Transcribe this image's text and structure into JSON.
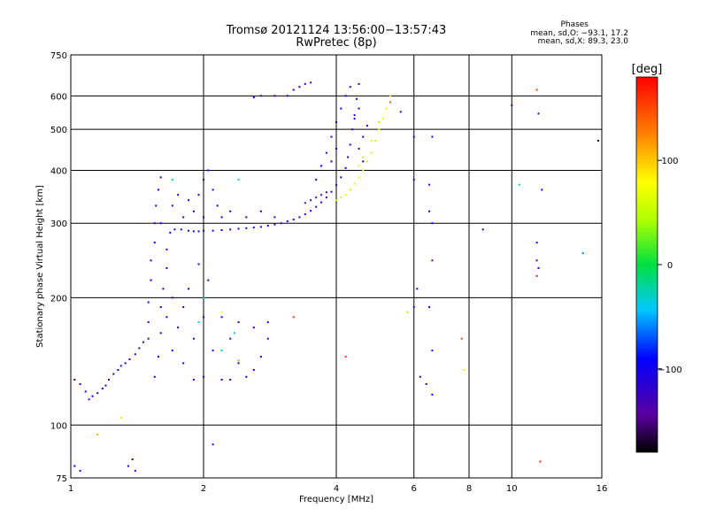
{
  "title": {
    "line1": "Tromsø 20121124 13:56:00−13:57:43",
    "line2": "RwPretec (8p)"
  },
  "stats": {
    "heading": "Phases",
    "line_o": "mean, sd,O: −93.1, 17.2",
    "line_x": "mean, sd,X: 89.3, 23.0"
  },
  "colorbar": {
    "unit": "[deg]",
    "min": -180,
    "max": 180,
    "ticks": [
      {
        "value": 100,
        "label": "100"
      },
      {
        "value": 0,
        "label": "0"
      },
      {
        "value": -100,
        "label": "−100"
      }
    ]
  },
  "chart_data": {
    "type": "scatter",
    "xlabel": "Frequency [MHz]",
    "ylabel": "Stationary phase Virtual Height [km]",
    "xscale": "log",
    "yscale": "log",
    "xlim": [
      1,
      16
    ],
    "ylim": [
      75,
      750
    ],
    "xticks": [
      {
        "value": 1,
        "label": "1"
      },
      {
        "value": 2,
        "label": "2"
      },
      {
        "value": 4,
        "label": "4"
      },
      {
        "value": 6,
        "label": "6"
      },
      {
        "value": 8,
        "label": "8"
      },
      {
        "value": 10,
        "label": "10"
      },
      {
        "value": 16,
        "label": "16"
      }
    ],
    "yticks": [
      {
        "value": 75,
        "label": "75"
      },
      {
        "value": 100,
        "label": "100"
      },
      {
        "value": 200,
        "label": "200"
      },
      {
        "value": 300,
        "label": "300"
      },
      {
        "value": 400,
        "label": "400"
      },
      {
        "value": 500,
        "label": "500"
      },
      {
        "value": 600,
        "label": "600"
      },
      {
        "value": 750,
        "label": "750"
      }
    ],
    "grid": true,
    "points": [
      [
        1.02,
        128,
        -110
      ],
      [
        1.05,
        125,
        -105
      ],
      [
        1.08,
        120,
        -100
      ],
      [
        1.1,
        115,
        -110
      ],
      [
        1.12,
        117,
        -95
      ],
      [
        1.15,
        119,
        -105
      ],
      [
        1.18,
        122,
        -110
      ],
      [
        1.2,
        124,
        -100
      ],
      [
        1.22,
        128,
        -105
      ],
      [
        1.25,
        132,
        -108
      ],
      [
        1.28,
        135,
        -100
      ],
      [
        1.3,
        138,
        -112
      ],
      [
        1.33,
        140,
        -98
      ],
      [
        1.36,
        143,
        -106
      ],
      [
        1.4,
        147,
        -110
      ],
      [
        1.43,
        152,
        -103
      ],
      [
        1.46,
        157,
        -100
      ],
      [
        1.5,
        160,
        -105
      ],
      [
        1.02,
        80,
        -100
      ],
      [
        1.05,
        78,
        -110
      ],
      [
        1.35,
        80,
        -105
      ],
      [
        1.4,
        78,
        -108
      ],
      [
        1.38,
        83,
        -100
      ],
      [
        1.5,
        175,
        -105
      ],
      [
        1.5,
        195,
        -110
      ],
      [
        1.52,
        220,
        -100
      ],
      [
        1.52,
        245,
        -108
      ],
      [
        1.55,
        270,
        -104
      ],
      [
        1.55,
        300,
        -110
      ],
      [
        1.56,
        330,
        -102
      ],
      [
        1.58,
        360,
        -106
      ],
      [
        1.6,
        385,
        -100
      ],
      [
        1.55,
        130,
        -105
      ],
      [
        1.58,
        145,
        -108
      ],
      [
        1.6,
        165,
        -100
      ],
      [
        1.6,
        190,
        -110
      ],
      [
        1.62,
        210,
        -104
      ],
      [
        1.65,
        235,
        -100
      ],
      [
        1.65,
        260,
        -108
      ],
      [
        1.68,
        285,
        -106
      ],
      [
        1.6,
        300,
        -100
      ],
      [
        1.7,
        330,
        -110
      ],
      [
        1.75,
        350,
        -104
      ],
      [
        1.8,
        310,
        -100
      ],
      [
        1.72,
        290,
        -108
      ],
      [
        1.78,
        290,
        -105
      ],
      [
        1.85,
        288,
        -106
      ],
      [
        1.9,
        287,
        -100
      ],
      [
        1.95,
        287,
        -110
      ],
      [
        2.0,
        288,
        -104
      ],
      [
        2.1,
        288,
        -108
      ],
      [
        2.2,
        289,
        -100
      ],
      [
        2.3,
        290,
        -106
      ],
      [
        2.4,
        291,
        -110
      ],
      [
        2.5,
        292,
        -104
      ],
      [
        2.6,
        293,
        -100
      ],
      [
        2.7,
        294,
        -108
      ],
      [
        2.8,
        296,
        -105
      ],
      [
        2.9,
        298,
        -106
      ],
      [
        3.0,
        300,
        -110
      ],
      [
        3.1,
        303,
        -100
      ],
      [
        3.2,
        306,
        -104
      ],
      [
        3.3,
        310,
        -108
      ],
      [
        3.4,
        315,
        -105
      ],
      [
        3.5,
        321,
        -100
      ],
      [
        3.6,
        328,
        -106
      ],
      [
        3.7,
        336,
        -110
      ],
      [
        3.8,
        345,
        -104
      ],
      [
        3.9,
        356,
        -100
      ],
      [
        4.0,
        369,
        -108
      ],
      [
        4.1,
        385,
        -105
      ],
      [
        4.2,
        405,
        -106
      ],
      [
        4.25,
        430,
        -110
      ],
      [
        4.3,
        460,
        -104
      ],
      [
        4.35,
        500,
        -100
      ],
      [
        4.4,
        540,
        -108
      ],
      [
        4.45,
        590,
        -105
      ],
      [
        4.5,
        640,
        -106
      ],
      [
        1.9,
        320,
        -105
      ],
      [
        1.95,
        350,
        -100
      ],
      [
        2.0,
        380,
        -110
      ],
      [
        2.05,
        400,
        -104
      ],
      [
        2.1,
        360,
        -108
      ],
      [
        2.15,
        330,
        -100
      ],
      [
        2.0,
        310,
        -106
      ],
      [
        1.85,
        340,
        -110
      ],
      [
        2.2,
        310,
        -104
      ],
      [
        2.3,
        320,
        -100
      ],
      [
        2.5,
        310,
        -108
      ],
      [
        2.7,
        320,
        -105
      ],
      [
        2.9,
        310,
        -106
      ],
      [
        3.5,
        340,
        -150
      ],
      [
        3.6,
        345,
        -140
      ],
      [
        3.7,
        350,
        -145
      ],
      [
        3.8,
        355,
        -150
      ],
      [
        3.4,
        335,
        -140
      ],
      [
        3.6,
        380,
        -105
      ],
      [
        3.7,
        410,
        -100
      ],
      [
        3.8,
        440,
        -110
      ],
      [
        3.9,
        480,
        -104
      ],
      [
        4.0,
        520,
        -108
      ],
      [
        4.1,
        560,
        -100
      ],
      [
        4.2,
        600,
        -106
      ],
      [
        4.3,
        630,
        -110
      ],
      [
        3.9,
        420,
        -104
      ],
      [
        4.0,
        450,
        -100
      ],
      [
        4.0,
        340,
        50
      ],
      [
        4.1,
        345,
        55
      ],
      [
        4.2,
        350,
        60
      ],
      [
        4.3,
        360,
        50
      ],
      [
        4.4,
        372,
        55
      ],
      [
        4.5,
        385,
        60
      ],
      [
        4.6,
        400,
        55
      ],
      [
        4.7,
        420,
        50
      ],
      [
        4.8,
        440,
        60
      ],
      [
        4.9,
        470,
        55
      ],
      [
        5.0,
        500,
        50
      ],
      [
        5.1,
        530,
        60
      ],
      [
        5.2,
        560,
        55
      ],
      [
        5.3,
        600,
        50
      ],
      [
        4.6,
        430,
        55
      ],
      [
        4.8,
        470,
        60
      ],
      [
        5.0,
        520,
        50
      ],
      [
        4.5,
        410,
        55
      ],
      [
        4.6,
        420,
        -105
      ],
      [
        4.5,
        450,
        -110
      ],
      [
        4.6,
        480,
        -100
      ],
      [
        4.7,
        510,
        -104
      ],
      [
        4.4,
        530,
        -108
      ],
      [
        4.5,
        560,
        -100
      ],
      [
        3.1,
        600,
        -105
      ],
      [
        3.2,
        620,
        -100
      ],
      [
        3.3,
        630,
        -110
      ],
      [
        3.4,
        640,
        -104
      ],
      [
        3.5,
        645,
        -108
      ],
      [
        2.6,
        595,
        -100
      ],
      [
        2.7,
        600,
        -106
      ],
      [
        2.9,
        600,
        -110
      ],
      [
        2.2,
        180,
        -105
      ],
      [
        2.3,
        160,
        -110
      ],
      [
        2.4,
        140,
        -100
      ],
      [
        2.5,
        130,
        -104
      ],
      [
        2.6,
        135,
        -108
      ],
      [
        2.7,
        145,
        -100
      ],
      [
        2.8,
        160,
        -106
      ],
      [
        2.8,
        175,
        -110
      ],
      [
        2.6,
        170,
        -104
      ],
      [
        2.4,
        175,
        -100
      ],
      [
        1.8,
        140,
        -105
      ],
      [
        1.9,
        160,
        -108
      ],
      [
        2.0,
        180,
        -100
      ],
      [
        2.0,
        200,
        -110
      ],
      [
        2.05,
        220,
        -104
      ],
      [
        1.95,
        240,
        -100
      ],
      [
        2.1,
        150,
        -108
      ],
      [
        2.0,
        130,
        -106
      ],
      [
        1.9,
        128,
        -110
      ],
      [
        2.2,
        128,
        -104
      ],
      [
        2.3,
        128,
        -100
      ],
      [
        1.7,
        150,
        -105
      ],
      [
        1.75,
        170,
        -108
      ],
      [
        1.8,
        190,
        -100
      ],
      [
        1.7,
        200,
        -110
      ],
      [
        1.65,
        180,
        -104
      ],
      [
        1.85,
        210,
        -100
      ],
      [
        2.35,
        165,
        -20
      ],
      [
        2.2,
        150,
        -30
      ],
      [
        2.0,
        200,
        -25
      ],
      [
        1.95,
        175,
        -35
      ],
      [
        1.7,
        380,
        -20
      ],
      [
        2.4,
        380,
        -30
      ],
      [
        2.2,
        185,
        80
      ],
      [
        2.4,
        142,
        120
      ],
      [
        1.3,
        104,
        90
      ],
      [
        1.15,
        95,
        110
      ],
      [
        2.1,
        90,
        -110
      ],
      [
        5.3,
        580,
        150
      ],
      [
        5.6,
        550,
        -110
      ],
      [
        6.0,
        480,
        -100
      ],
      [
        6.6,
        480,
        -105
      ],
      [
        6.0,
        380,
        -110
      ],
      [
        6.5,
        370,
        -100
      ],
      [
        6.5,
        320,
        -105
      ],
      [
        6.6,
        300,
        -110
      ],
      [
        6.1,
        210,
        -105
      ],
      [
        6.6,
        245,
        -140
      ],
      [
        6.5,
        190,
        -110
      ],
      [
        5.8,
        185,
        40
      ],
      [
        6.6,
        150,
        -120
      ],
      [
        3.2,
        180,
        150
      ],
      [
        4.2,
        145,
        160
      ],
      [
        7.7,
        160,
        150
      ],
      [
        7.8,
        135,
        60
      ],
      [
        8.6,
        290,
        -150
      ],
      [
        6.2,
        130,
        -110
      ],
      [
        6.4,
        125,
        -105
      ],
      [
        6.6,
        118,
        -100
      ],
      [
        10.0,
        570,
        -110
      ],
      [
        10.4,
        370,
        -20
      ],
      [
        11.4,
        620,
        160
      ],
      [
        11.5,
        545,
        -120
      ],
      [
        11.7,
        360,
        -105
      ],
      [
        11.4,
        270,
        -110
      ],
      [
        11.4,
        245,
        -140
      ],
      [
        11.5,
        235,
        -100
      ],
      [
        11.4,
        225,
        170
      ],
      [
        14.5,
        255,
        -60
      ],
      [
        15.7,
        470,
        -170
      ],
      [
        11.6,
        82,
        160
      ],
      [
        6.0,
        190,
        -120
      ]
    ]
  }
}
